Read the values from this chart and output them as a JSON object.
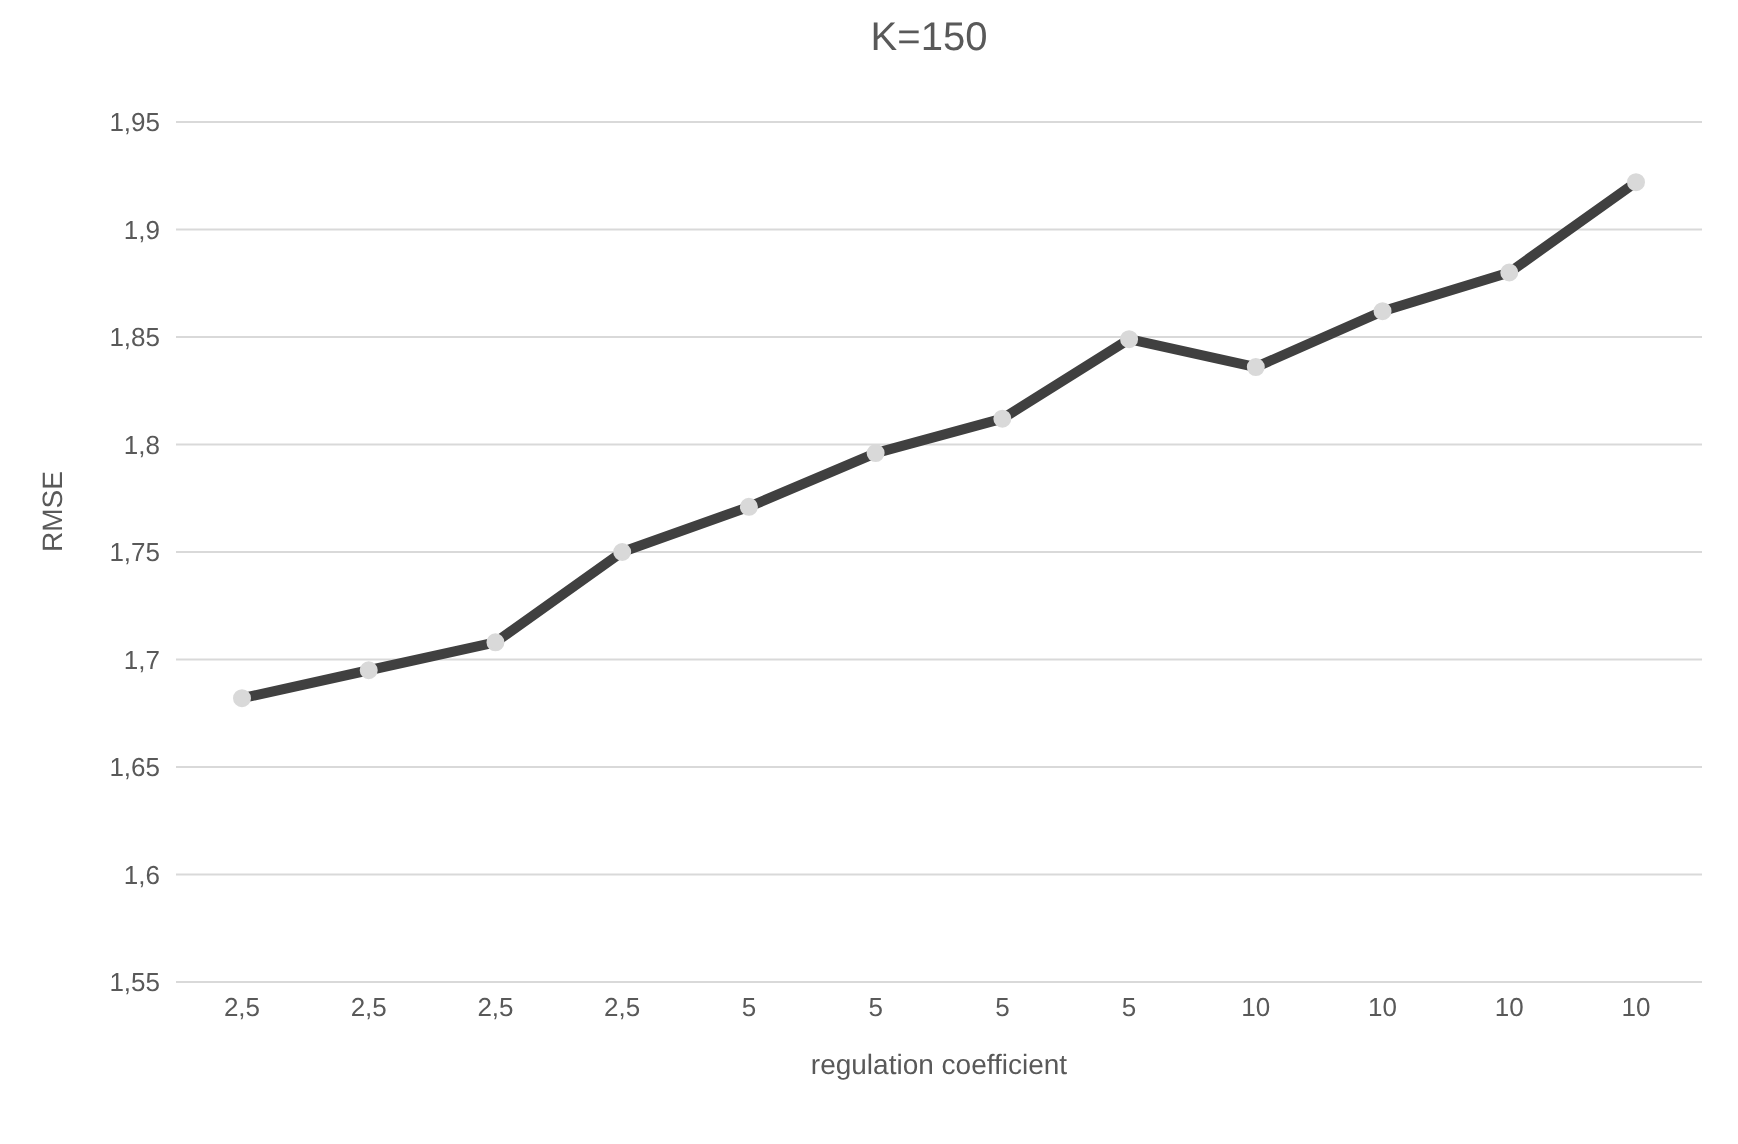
{
  "chart_data": {
    "type": "line",
    "title": "K=150",
    "xlabel": "regulation coefficient",
    "ylabel": "RMSE",
    "categories": [
      "2,5",
      "2,5",
      "2,5",
      "2,5",
      "5",
      "5",
      "5",
      "5",
      "10",
      "10",
      "10",
      "10"
    ],
    "series": [
      {
        "color": "#404040",
        "values": [
          1.682,
          1.695,
          1.708,
          1.75,
          1.771,
          1.796,
          1.812,
          1.849,
          1.836,
          1.862,
          1.88,
          1.922
        ]
      }
    ],
    "ylim": [
      1.55,
      1.95
    ],
    "yticks": [
      {
        "value": 1.55,
        "label": "1,55"
      },
      {
        "value": 1.6,
        "label": "1,6"
      },
      {
        "value": 1.65,
        "label": "1,65"
      },
      {
        "value": 1.7,
        "label": "1,7"
      },
      {
        "value": 1.75,
        "label": "1,75"
      },
      {
        "value": 1.8,
        "label": "1,8"
      },
      {
        "value": 1.85,
        "label": "1,85"
      },
      {
        "value": 1.9,
        "label": "1,9"
      },
      {
        "value": 1.95,
        "label": "1,95"
      }
    ],
    "grid": "y",
    "legend": false,
    "marker": "circle",
    "line_style": "solid"
  }
}
